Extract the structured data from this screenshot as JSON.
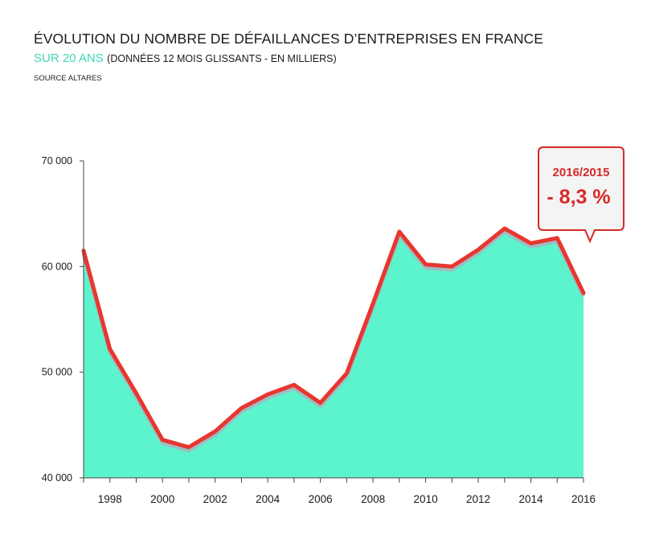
{
  "header": {
    "title": "ÉVOLUTION DU NOMBRE DE DÉFAILLANCES D’ENTREPRISES EN FRANCE",
    "subtitle_highlight": "SUR 20 ANS",
    "subtitle_rest": "(DONNÉES 12 MOIS GLISSANTS - EN MILLIERS)",
    "source": "SOURCE ALTARES"
  },
  "callout": {
    "period": "2016/2015",
    "value": "- 8,3 %"
  },
  "colors": {
    "fill": "#5cf4cc",
    "line": "#e8362f",
    "shadow": "#a9b3bf",
    "highlight": "#3fd6b8"
  },
  "chart_data": {
    "type": "area",
    "title": "ÉVOLUTION DU NOMBRE DE DÉFAILLANCES D’ENTREPRISES EN FRANCE",
    "xlabel": "",
    "ylabel": "",
    "x": [
      1997,
      1998,
      1999,
      2000,
      2001,
      2002,
      2003,
      2004,
      2005,
      2006,
      2007,
      2008,
      2009,
      2010,
      2011,
      2012,
      2013,
      2014,
      2015,
      2016
    ],
    "values": [
      61500,
      52200,
      48000,
      43600,
      42900,
      44400,
      46600,
      47900,
      48800,
      47100,
      49900,
      56500,
      63300,
      60200,
      60000,
      61600,
      63600,
      62200,
      62700,
      57500
    ],
    "ylim": [
      40000,
      70000
    ],
    "yticks": [
      "40 000",
      "50 000",
      "60 000",
      "70 000"
    ],
    "ytick_values": [
      40000,
      50000,
      60000,
      70000
    ],
    "xticks": [
      "1998",
      "2000",
      "2002",
      "2004",
      "2006",
      "2008",
      "2010",
      "2012",
      "2014",
      "2016"
    ],
    "xtick_values": [
      1998,
      2000,
      2002,
      2004,
      2006,
      2008,
      2010,
      2012,
      2014,
      2016
    ],
    "grid": false
  }
}
